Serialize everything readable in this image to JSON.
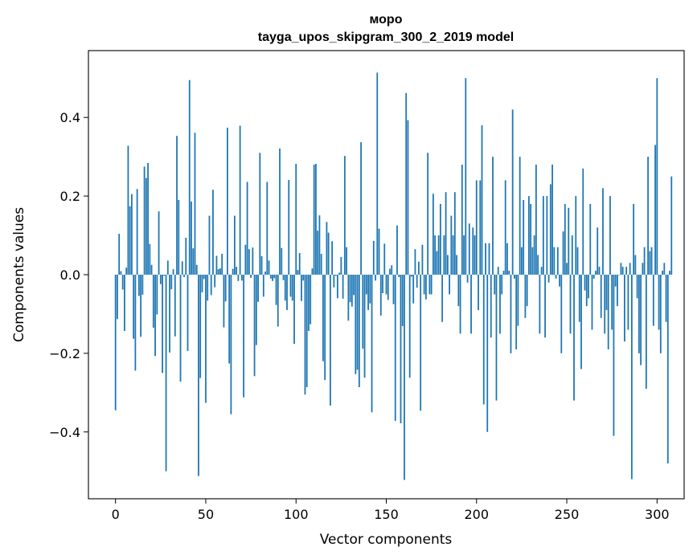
{
  "chart_data": {
    "type": "bar",
    "title_line1": "моро",
    "title_line2": "tayga_upos_skipgram_300_2_2019 model",
    "xlabel": "Vector components",
    "ylabel": "Components values",
    "xlim": [
      -15,
      315
    ],
    "ylim": [
      -0.57,
      0.57
    ],
    "xticks": [
      0,
      50,
      100,
      150,
      200,
      250,
      300
    ],
    "xtick_labels": [
      "0",
      "50",
      "100",
      "150",
      "200",
      "250",
      "300"
    ],
    "yticks": [
      -0.4,
      -0.2,
      0.0,
      0.2,
      0.4
    ],
    "ytick_labels": [
      "−0.4",
      "−0.2",
      "0.0",
      "0.2",
      "0.4"
    ],
    "bar_color": "#1f77b4",
    "values": [
      -0.345,
      -0.113,
      0.104,
      0.009,
      -0.038,
      -0.143,
      0.018,
      0.328,
      0.174,
      0.205,
      -0.163,
      -0.244,
      0.218,
      -0.054,
      -0.158,
      -0.051,
      0.275,
      0.246,
      0.284,
      0.078,
      0.025,
      -0.135,
      -0.207,
      -0.101,
      0.161,
      -0.024,
      -0.25,
      -0.003,
      -0.5,
      0.036,
      -0.198,
      -0.037,
      0.014,
      -0.157,
      0.353,
      0.19,
      -0.272,
      0.034,
      -0.006,
      0.094,
      -0.194,
      0.495,
      0.186,
      0.067,
      0.361,
      0.025,
      -0.512,
      -0.263,
      -0.045,
      -0.011,
      -0.326,
      -0.066,
      0.15,
      -0.052,
      0.216,
      -0.032,
      0.048,
      0.014,
      0.016,
      0.053,
      -0.134,
      -0.068,
      0.374,
      -0.226,
      -0.355,
      0.015,
      0.15,
      0.02,
      -0.016,
      0.379,
      -0.015,
      -0.312,
      0.076,
      0.236,
      0.065,
      -0.008,
      0.069,
      -0.258,
      -0.179,
      -0.069,
      0.31,
      0.047,
      -0.056,
      0.008,
      0.236,
      0.036,
      -0.01,
      -0.016,
      -0.009,
      -0.077,
      -0.132,
      0.321,
      0.068,
      -0.014,
      -0.066,
      -0.09,
      0.241,
      -0.056,
      -0.066,
      -0.176,
      0.282,
      0.012,
      0.055,
      -0.067,
      -0.015,
      -0.305,
      -0.286,
      -0.143,
      -0.126,
      0.016,
      0.28,
      0.282,
      0.112,
      0.151,
      0.053,
      -0.22,
      -0.268,
      0.134,
      0.107,
      -0.333,
      0.085,
      -0.032,
      -0.003,
      -0.06,
      0.005,
      0.045,
      -0.061,
      0.302,
      0.07,
      -0.117,
      -0.07,
      -0.081,
      -0.052,
      -0.253,
      -0.242,
      -0.286,
      0.337,
      -0.188,
      -0.262,
      -0.05,
      -0.09,
      -0.073,
      -0.35,
      0.086,
      -0.015,
      0.514,
      0.117,
      -0.104,
      -0.047,
      0.079,
      -0.05,
      -0.064,
      0.015,
      0.024,
      -0.075,
      -0.372,
      0.125,
      -0.006,
      -0.378,
      -0.131,
      -0.522,
      0.462,
      0.393,
      -0.262,
      -0.005,
      -0.073,
      0.065,
      -0.033,
      0.033,
      -0.346,
      0.076,
      -0.05,
      -0.063,
      0.31,
      -0.05,
      -0.05,
      0.206,
      0.1,
      0.06,
      0.1,
      0.18,
      -0.12,
      0.1,
      0.21,
      0.05,
      -0.05,
      0.15,
      0.1,
      0.21,
      0.05,
      -0.08,
      -0.15,
      0.28,
      0.1,
      0.5,
      -0.02,
      0.13,
      -0.15,
      0.12,
      0.1,
      0.24,
      -0.09,
      0.24,
      0.38,
      -0.33,
      0.08,
      -0.4,
      0.08,
      -0.16,
      0.3,
      -0.05,
      -0.32,
      0.02,
      -0.15,
      -0.05,
      0.01,
      0.24,
      0.08,
      0.01,
      -0.2,
      0.42,
      -0.01,
      -0.19,
      -0.13,
      0.3,
      0.07,
      0.19,
      -0.11,
      -0.08,
      0.2,
      0.18,
      0.07,
      0.1,
      0.28,
      0.05,
      -0.15,
      0.02,
      0.2,
      -0.16,
      0.2,
      -0.02,
      0.23,
      0.28,
      0.07,
      -0.01,
      0.07,
      -0.03,
      -0.2,
      0.11,
      0.18,
      0.03,
      0.17,
      -0.15,
      0.1,
      -0.32,
      0.2,
      0.07,
      -0.12,
      -0.24,
      0.27,
      -0.04,
      -0.08,
      -0.06,
      0.18,
      -0.14,
      -0.01,
      0.01,
      0.12,
      0.02,
      -0.11,
      0.22,
      -0.15,
      -0.09,
      -0.19,
      0.2,
      -0.14,
      -0.41,
      -0.03,
      -0.08,
      0.0,
      0.03,
      0.02,
      -0.17,
      0.02,
      -0.14,
      0.03,
      -0.52,
      0.18,
      0.05,
      -0.06,
      -0.2,
      -0.23,
      0.03,
      0.07,
      -0.29,
      0.3,
      0.06,
      0.07,
      -0.13,
      0.33,
      0.5,
      -0.14,
      -0.2,
      0.01,
      0.03,
      -0.12,
      -0.48,
      0.01,
      0.25
    ]
  }
}
